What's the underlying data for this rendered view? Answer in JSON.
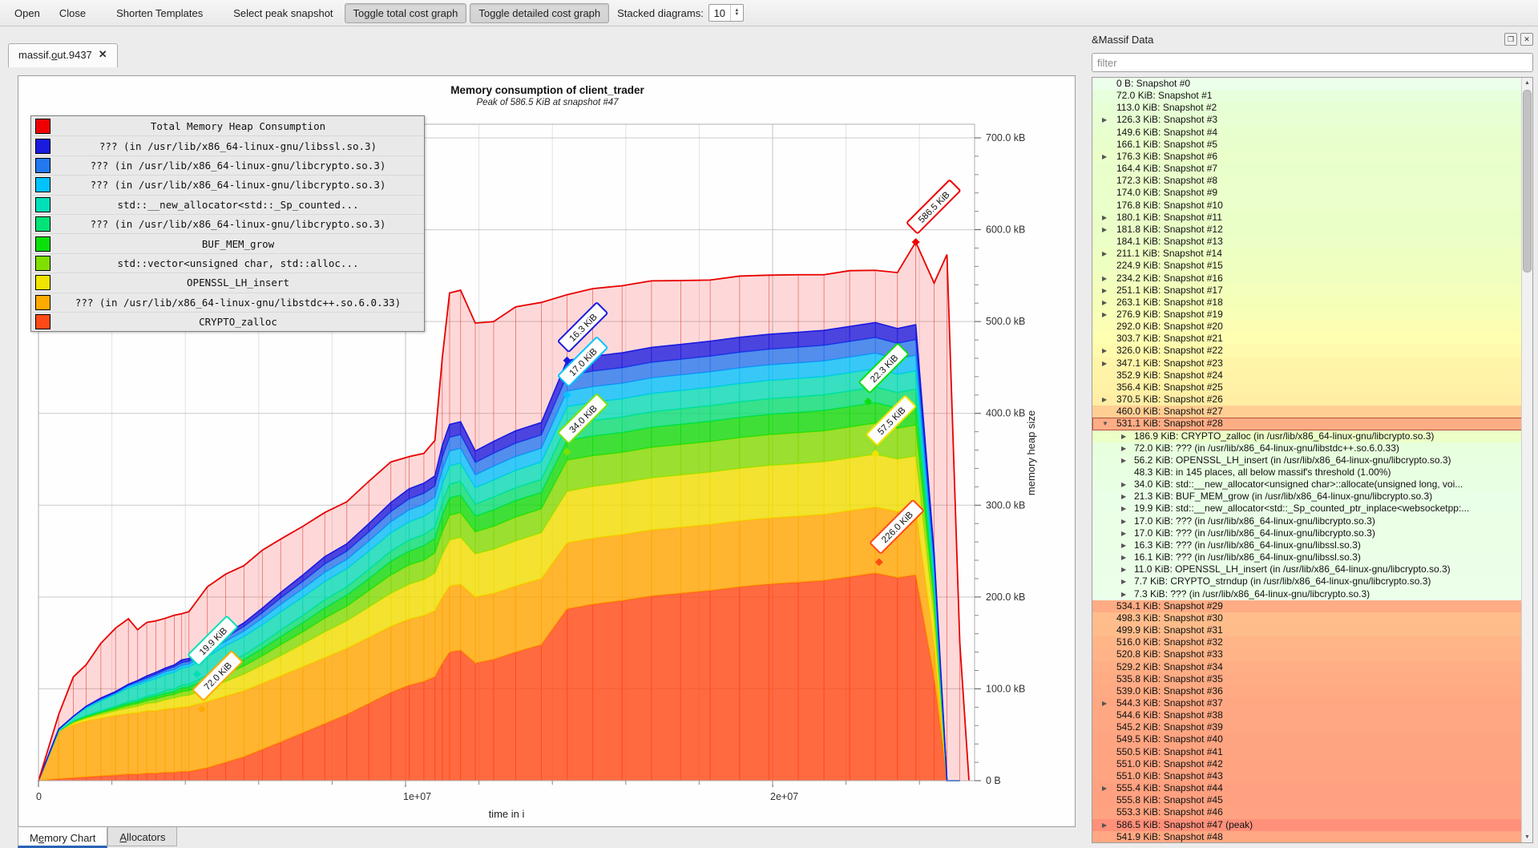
{
  "toolbar": {
    "open": "Open",
    "close": "Close",
    "shorten": "Shorten Templates",
    "select_peak": "Select peak snapshot",
    "toggle_total": "Toggle total cost graph",
    "toggle_detailed": "Toggle detailed cost graph",
    "stacked_label": "Stacked diagrams:",
    "stacked_value": "10"
  },
  "doc_tab": {
    "pre": "massif.",
    "mnemonic": "o",
    "post": "ut.9437",
    "close_glyph": "✕"
  },
  "chart": {
    "title": "Memory consumption of client_trader",
    "subtitle": "Peak of 586.5 KiB at snapshot #47",
    "xlabel": "time in i",
    "ylabel": "memory heap size",
    "y_tick_labels": [
      "0 B",
      "100.0 kB",
      "200.0 kB",
      "300.0 kB",
      "400.0 kB",
      "500.0 kB",
      "600.0 kB",
      "700.0 kB"
    ],
    "x_ticks": [
      {
        "t": 0,
        "label": "0"
      },
      {
        "t": 10,
        "label": "1e+07"
      },
      {
        "t": 20,
        "label": "2e+07"
      }
    ]
  },
  "legend": [
    {
      "label": "Total Memory Heap Consumption",
      "color": "#ee0000"
    },
    {
      "label": "??? (in /usr/lib/x86_64-linux-gnu/libssl.so.3)",
      "color": "#1a1ae0"
    },
    {
      "label": "??? (in /usr/lib/x86_64-linux-gnu/libcrypto.so.3)",
      "color": "#2279f2"
    },
    {
      "label": "??? (in /usr/lib/x86_64-linux-gnu/libcrypto.so.3)",
      "color": "#00c3ff"
    },
    {
      "label": "std::__new_allocator<std::_Sp_counted...",
      "color": "#00e0b8"
    },
    {
      "label": "??? (in /usr/lib/x86_64-linux-gnu/libcrypto.so.3)",
      "color": "#00e376"
    },
    {
      "label": "BUF_MEM_grow",
      "color": "#0ae00a"
    },
    {
      "label": "std::vector<unsigned char, std::alloc...",
      "color": "#7fe000"
    },
    {
      "label": "OPENSSL_LH_insert",
      "color": "#f0e400"
    },
    {
      "label": "??? (in /usr/lib/x86_64-linux-gnu/libstdc++.so.6.0.33)",
      "color": "#ffaa00"
    },
    {
      "label": "CRYPTO_zalloc",
      "color": "#ff4a16"
    }
  ],
  "chart_data": {
    "type": "area",
    "xlabel": "time in i",
    "ylabel": "memory heap size",
    "xlim_e6": [
      0,
      25.5
    ],
    "ylim_kb": [
      0,
      730
    ],
    "x_e6": [
      0,
      0.55,
      0.95,
      1.3,
      1.7,
      2.1,
      2.45,
      2.7,
      2.95,
      3.2,
      3.45,
      3.7,
      3.9,
      4.1,
      4.6,
      5.1,
      5.6,
      6.1,
      6.6,
      7.2,
      7.8,
      8.4,
      9.0,
      9.6,
      10.1,
      10.5,
      10.8,
      11.0,
      11.2,
      11.5,
      11.9,
      12.4,
      13.0,
      13.7,
      14.4,
      15.1,
      15.9,
      16.7,
      17.5,
      18.3,
      19.1,
      19.9,
      20.7,
      21.4,
      22.1,
      22.8,
      23.4,
      23.9,
      24.4,
      24.75,
      25.1
    ],
    "total": {
      "name": "Total Memory Heap Consumption",
      "color": "#e80000",
      "values": [
        0,
        72,
        113,
        126.3,
        149.6,
        166.1,
        176.3,
        164.4,
        172.3,
        174,
        176.8,
        180.1,
        181.8,
        184.1,
        211.1,
        224.9,
        234.2,
        251.1,
        263.1,
        276.9,
        292,
        303.7,
        326,
        347.1,
        352.9,
        356.4,
        370.5,
        460,
        531.1,
        534.1,
        498.3,
        499.9,
        516,
        520.8,
        529.2,
        535.8,
        539,
        544.3,
        544.6,
        545.2,
        549.5,
        550.5,
        551,
        551,
        555.4,
        555.8,
        553.3,
        586.5,
        541.9,
        573,
        150
      ]
    },
    "series": [
      {
        "name": "CRYPTO_zalloc",
        "color": "#ff4a16",
        "values": [
          0,
          2,
          3,
          4,
          5,
          6,
          7,
          7,
          8,
          8,
          9,
          9,
          10,
          10,
          14,
          20,
          26,
          34,
          42,
          52,
          62,
          72,
          84,
          96,
          104,
          108,
          113,
          128,
          140,
          142,
          128,
          132,
          140,
          148,
          186.9,
          192,
          196,
          201,
          204,
          207,
          211,
          214,
          216,
          218,
          222,
          226,
          221,
          224,
          112,
          0,
          0
        ]
      },
      {
        "name": "??? (libstdc++.so.6.0.33)",
        "color": "#ffaa00",
        "values": [
          0,
          52,
          58,
          61,
          63,
          65,
          66,
          67,
          68,
          68,
          69,
          70,
          70,
          71,
          72,
          72,
          72,
          72,
          72,
          72,
          72,
          72,
          72,
          72,
          72,
          72,
          72,
          72,
          72,
          72,
          72,
          72,
          72,
          72,
          72,
          72,
          72,
          72,
          72,
          72,
          72,
          72,
          72,
          72,
          72,
          72,
          72,
          72,
          36,
          0,
          0
        ]
      },
      {
        "name": "OPENSSL_LH_insert",
        "color": "#f0e400",
        "values": [
          0,
          0,
          2,
          3,
          4,
          5,
          6,
          7,
          8,
          9,
          10,
          11,
          12,
          12,
          14,
          16,
          18,
          20,
          22,
          25,
          28,
          30,
          33,
          36,
          38,
          39,
          41,
          46,
          50,
          51,
          47,
          48,
          49,
          50,
          56.2,
          56.4,
          56.6,
          56.8,
          56.9,
          57,
          57.1,
          57.2,
          57.3,
          57.3,
          57.4,
          57.5,
          57.2,
          57.4,
          29,
          0,
          0
        ]
      },
      {
        "name": "std::vector<unsigned char>",
        "color": "#7fe000",
        "values": [
          0,
          0,
          1,
          1,
          2,
          2,
          3,
          3,
          3,
          4,
          4,
          4,
          5,
          5,
          6,
          8,
          9,
          10,
          12,
          13,
          15,
          16,
          18,
          20,
          21,
          21,
          22,
          25,
          27,
          27,
          24,
          25,
          26,
          26,
          34,
          33.5,
          33,
          33.2,
          33.3,
          33.4,
          33.5,
          33.6,
          33.7,
          33.7,
          33.8,
          33.9,
          33.6,
          33.8,
          17,
          0,
          0
        ]
      },
      {
        "name": "BUF_MEM_grow",
        "color": "#0ae00a",
        "values": [
          0,
          0,
          1,
          1,
          1,
          2,
          2,
          2,
          3,
          3,
          3,
          3,
          4,
          4,
          5,
          6,
          7,
          8,
          9,
          10,
          11,
          12,
          13,
          15,
          15,
          16,
          16,
          18,
          19,
          19,
          17,
          18,
          18,
          18,
          21.3,
          21.5,
          21.6,
          21.8,
          21.9,
          22,
          22,
          22.1,
          22.1,
          22.2,
          22.2,
          22.3,
          22,
          22.2,
          11,
          0,
          0
        ]
      },
      {
        "name": "??? (libcrypto.so.3)",
        "color": "#00e376",
        "values": [
          0,
          0,
          0,
          1,
          1,
          1,
          2,
          2,
          2,
          2,
          3,
          3,
          3,
          3,
          4,
          5,
          5,
          6,
          7,
          8,
          9,
          9,
          10,
          11,
          12,
          12,
          12,
          14,
          15,
          15,
          13,
          14,
          14,
          14,
          17,
          16.9,
          16.8,
          16.9,
          16.9,
          17,
          17,
          17,
          17,
          17,
          17,
          17,
          16.9,
          17,
          8.5,
          0,
          0
        ]
      },
      {
        "name": "std::__new_allocator<std::_Sp_counted...",
        "color": "#00e0b8",
        "values": [
          0,
          2,
          5,
          8,
          11,
          13,
          15,
          16,
          16,
          17,
          17.5,
          18,
          18.5,
          19,
          19.9,
          19.9,
          19.9,
          19.9,
          19.9,
          19.9,
          19.9,
          19.9,
          19.9,
          19.9,
          19.9,
          19.9,
          19.9,
          19.9,
          19.9,
          19.9,
          18,
          18.5,
          19,
          19,
          19.9,
          19.9,
          19.9,
          19.9,
          19.9,
          19.9,
          19.9,
          19.9,
          19.9,
          19.9,
          19.9,
          19.9,
          19.9,
          19.9,
          10,
          0,
          0
        ]
      },
      {
        "name": "??? (libcrypto.so.3)",
        "color": "#00c3ff",
        "values": [
          0,
          0,
          0,
          1,
          1,
          1,
          2,
          2,
          2,
          3,
          3,
          3,
          3,
          3,
          4,
          5,
          6,
          7,
          8,
          9,
          10,
          10,
          11,
          12,
          13,
          13,
          13,
          15,
          16,
          16,
          14,
          15,
          15,
          15,
          17,
          16.9,
          16.9,
          17,
          17,
          17,
          17,
          17,
          17,
          17,
          17,
          17,
          16.8,
          17,
          8.5,
          0,
          0
        ]
      },
      {
        "name": "??? (libcrypto.so.3)",
        "color": "#2279f2",
        "values": [
          0,
          0,
          0,
          1,
          1,
          1,
          1,
          2,
          2,
          2,
          2,
          3,
          3,
          3,
          4,
          4,
          5,
          6,
          7,
          8,
          9,
          9,
          10,
          11,
          12,
          12,
          12,
          14,
          15,
          15,
          13.5,
          14,
          14.5,
          14.5,
          17,
          16.9,
          16.9,
          17,
          17,
          17,
          17,
          17,
          17,
          17,
          17,
          17,
          16.9,
          17,
          8.5,
          0,
          0
        ]
      },
      {
        "name": "??? (libssl.so.3)",
        "color": "#1a1ae0",
        "values": [
          0,
          0,
          0,
          0,
          1,
          1,
          1,
          1,
          2,
          2,
          2,
          2,
          3,
          3,
          3,
          4,
          4,
          5,
          6,
          7,
          8,
          8,
          9,
          10,
          11,
          11,
          11,
          13,
          14,
          14,
          12.5,
          13,
          13.5,
          13.5,
          16.3,
          16.2,
          16.2,
          16.2,
          16.2,
          16.3,
          16.3,
          16.3,
          16.3,
          16.3,
          16.3,
          16.3,
          16.1,
          16.3,
          8,
          0,
          0
        ]
      }
    ],
    "flags": [
      {
        "t": 4.32,
        "v": 116,
        "label": "19.9 KiB",
        "color": "#00e0b8"
      },
      {
        "t": 4.45,
        "v": 78,
        "label": "72.0 KiB",
        "color": "#ffaa00"
      },
      {
        "t": 14.4,
        "v": 457.6,
        "label": "16.3 KiB",
        "color": "#1a1ae0"
      },
      {
        "t": 14.4,
        "v": 420,
        "label": "17.0 KiB",
        "color": "#00c3ff"
      },
      {
        "t": 14.4,
        "v": 358,
        "label": "34.0 KiB",
        "color": "#7fe000"
      },
      {
        "t": 22.6,
        "v": 413,
        "label": "22.3 KiB",
        "color": "#0ae00a"
      },
      {
        "t": 22.8,
        "v": 356,
        "label": "57.5 KiB",
        "color": "#f0e400"
      },
      {
        "t": 22.9,
        "v": 238,
        "label": "226.0 KiB",
        "color": "#ff4a16"
      },
      {
        "t": 23.9,
        "v": 586.5,
        "label": "586.5 KiB",
        "color": "#ee0000",
        "peak": true
      }
    ]
  },
  "bottom_tabs": {
    "memory_chart": {
      "pre": "M",
      "mnemonic": "e",
      "post": "mory Chart"
    },
    "allocators": {
      "pre": "",
      "mnemonic": "A",
      "post": "llocators"
    }
  },
  "dock": {
    "title": "&Massif Data",
    "filter_placeholder": "filter",
    "float_glyph": "❐",
    "close_glyph": "✕",
    "peak_kib": 586.5,
    "snapshots": [
      {
        "v": 0,
        "label": "0 B: Snapshot #0"
      },
      {
        "v": 72.0,
        "label": "72.0 KiB: Snapshot #1"
      },
      {
        "v": 113.0,
        "label": "113.0 KiB: Snapshot #2"
      },
      {
        "v": 126.3,
        "label": "126.3 KiB: Snapshot #3",
        "exp": "closed"
      },
      {
        "v": 149.6,
        "label": "149.6 KiB: Snapshot #4"
      },
      {
        "v": 166.1,
        "label": "166.1 KiB: Snapshot #5"
      },
      {
        "v": 176.3,
        "label": "176.3 KiB: Snapshot #6",
        "exp": "closed"
      },
      {
        "v": 164.4,
        "label": "164.4 KiB: Snapshot #7"
      },
      {
        "v": 172.3,
        "label": "172.3 KiB: Snapshot #8"
      },
      {
        "v": 174.0,
        "label": "174.0 KiB: Snapshot #9"
      },
      {
        "v": 176.8,
        "label": "176.8 KiB: Snapshot #10"
      },
      {
        "v": 180.1,
        "label": "180.1 KiB: Snapshot #11",
        "exp": "closed"
      },
      {
        "v": 181.8,
        "label": "181.8 KiB: Snapshot #12",
        "exp": "closed"
      },
      {
        "v": 184.1,
        "label": "184.1 KiB: Snapshot #13"
      },
      {
        "v": 211.1,
        "label": "211.1 KiB: Snapshot #14",
        "exp": "closed"
      },
      {
        "v": 224.9,
        "label": "224.9 KiB: Snapshot #15"
      },
      {
        "v": 234.2,
        "label": "234.2 KiB: Snapshot #16",
        "exp": "closed"
      },
      {
        "v": 251.1,
        "label": "251.1 KiB: Snapshot #17",
        "exp": "closed"
      },
      {
        "v": 263.1,
        "label": "263.1 KiB: Snapshot #18",
        "exp": "closed"
      },
      {
        "v": 276.9,
        "label": "276.9 KiB: Snapshot #19",
        "exp": "closed"
      },
      {
        "v": 292.0,
        "label": "292.0 KiB: Snapshot #20"
      },
      {
        "v": 303.7,
        "label": "303.7 KiB: Snapshot #21"
      },
      {
        "v": 326.0,
        "label": "326.0 KiB: Snapshot #22",
        "exp": "closed"
      },
      {
        "v": 347.1,
        "label": "347.1 KiB: Snapshot #23",
        "exp": "closed"
      },
      {
        "v": 352.9,
        "label": "352.9 KiB: Snapshot #24"
      },
      {
        "v": 356.4,
        "label": "356.4 KiB: Snapshot #25"
      },
      {
        "v": 370.5,
        "label": "370.5 KiB: Snapshot #26",
        "exp": "closed"
      },
      {
        "v": 460.0,
        "label": "460.0 KiB: Snapshot #27"
      },
      {
        "v": 531.1,
        "label": "531.1 KiB: Snapshot #28",
        "exp": "open",
        "selected": true
      },
      {
        "v": 534.1,
        "label": "534.1 KiB: Snapshot #29"
      },
      {
        "v": 498.3,
        "label": "498.3 KiB: Snapshot #30"
      },
      {
        "v": 499.9,
        "label": "499.9 KiB: Snapshot #31"
      },
      {
        "v": 516.0,
        "label": "516.0 KiB: Snapshot #32"
      },
      {
        "v": 520.8,
        "label": "520.8 KiB: Snapshot #33"
      },
      {
        "v": 529.2,
        "label": "529.2 KiB: Snapshot #34"
      },
      {
        "v": 535.8,
        "label": "535.8 KiB: Snapshot #35"
      },
      {
        "v": 539.0,
        "label": "539.0 KiB: Snapshot #36"
      },
      {
        "v": 544.3,
        "label": "544.3 KiB: Snapshot #37",
        "exp": "closed"
      },
      {
        "v": 544.6,
        "label": "544.6 KiB: Snapshot #38"
      },
      {
        "v": 545.2,
        "label": "545.2 KiB: Snapshot #39"
      },
      {
        "v": 549.5,
        "label": "549.5 KiB: Snapshot #40"
      },
      {
        "v": 550.5,
        "label": "550.5 KiB: Snapshot #41"
      },
      {
        "v": 551.0,
        "label": "551.0 KiB: Snapshot #42"
      },
      {
        "v": 551.0,
        "label": "551.0 KiB: Snapshot #43"
      },
      {
        "v": 555.4,
        "label": "555.4 KiB: Snapshot #44",
        "exp": "closed"
      },
      {
        "v": 555.8,
        "label": "555.8 KiB: Snapshot #45"
      },
      {
        "v": 553.3,
        "label": "553.3 KiB: Snapshot #46"
      },
      {
        "v": 586.5,
        "label": "586.5 KiB: Snapshot #47 (peak)",
        "exp": "closed"
      },
      {
        "v": 541.9,
        "label": "541.9 KiB: Snapshot #48"
      }
    ],
    "expanded_after_index": 28,
    "children": [
      {
        "v": 186.9,
        "label": "186.9 KiB: CRYPTO_zalloc (in /usr/lib/x86_64-linux-gnu/libcrypto.so.3)",
        "exp": "closed"
      },
      {
        "v": 72.0,
        "label": "72.0 KiB: ??? (in /usr/lib/x86_64-linux-gnu/libstdc++.so.6.0.33)",
        "exp": "closed"
      },
      {
        "v": 56.2,
        "label": "56.2 KiB: OPENSSL_LH_insert (in /usr/lib/x86_64-linux-gnu/libcrypto.so.3)",
        "exp": "closed"
      },
      {
        "v": 48.3,
        "label": "48.3 KiB: in 145 places, all below massif's threshold (1.00%)"
      },
      {
        "v": 34.0,
        "label": "34.0 KiB: std::__new_allocator<unsigned char>::allocate(unsigned long, voi...",
        "exp": "closed"
      },
      {
        "v": 21.3,
        "label": "21.3 KiB: BUF_MEM_grow (in /usr/lib/x86_64-linux-gnu/libcrypto.so.3)",
        "exp": "closed"
      },
      {
        "v": 19.9,
        "label": "19.9 KiB: std::__new_allocator<std::_Sp_counted_ptr_inplace<websocketpp:...",
        "exp": "closed"
      },
      {
        "v": 17.0,
        "label": "17.0 KiB: ??? (in /usr/lib/x86_64-linux-gnu/libcrypto.so.3)",
        "exp": "closed"
      },
      {
        "v": 17.0,
        "label": "17.0 KiB: ??? (in /usr/lib/x86_64-linux-gnu/libcrypto.so.3)",
        "exp": "closed"
      },
      {
        "v": 16.3,
        "label": "16.3 KiB: ??? (in /usr/lib/x86_64-linux-gnu/libssl.so.3)",
        "exp": "closed"
      },
      {
        "v": 16.1,
        "label": "16.1 KiB: ??? (in /usr/lib/x86_64-linux-gnu/libssl.so.3)",
        "exp": "closed"
      },
      {
        "v": 11.0,
        "label": "11.0 KiB: OPENSSL_LH_insert (in /usr/lib/x86_64-linux-gnu/libcrypto.so.3)",
        "exp": "closed"
      },
      {
        "v": 7.7,
        "label": "7.7 KiB: CRYPTO_strndup (in /usr/lib/x86_64-linux-gnu/libcrypto.so.3)",
        "exp": "closed"
      },
      {
        "v": 7.3,
        "label": "7.3 KiB: ??? (in /usr/lib/x86_64-linux-gnu/libcrypto.so.3)",
        "exp": "closed"
      }
    ]
  }
}
